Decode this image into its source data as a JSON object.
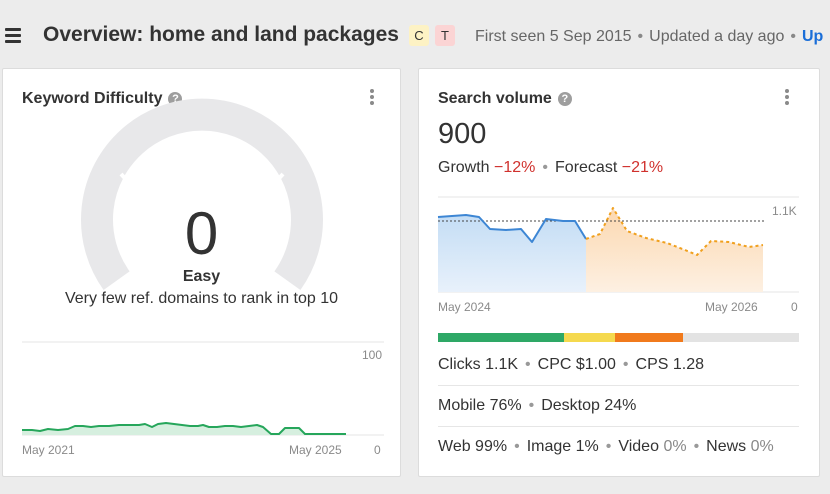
{
  "header": {
    "title": "Overview: home and land packages",
    "intent_badges": [
      "C",
      "T"
    ],
    "first_seen": "First seen 5 Sep 2015",
    "updated": "Updated a day ago",
    "update_link": "Up"
  },
  "keyword_difficulty": {
    "title": "Keyword Difficulty",
    "help_icon": "?",
    "value": "0",
    "label": "Easy",
    "description": "Very few ref. domains to rank in top 10",
    "gauge_fill_fraction": 0,
    "history_chart": {
      "y_max_label": "100",
      "y_min_label": "0",
      "x_start_label": "May 2021",
      "x_end_label": "May 2025",
      "line_color": "#26a65b"
    }
  },
  "search_volume": {
    "title": "Search volume",
    "help_icon": "?",
    "value": "900",
    "growth_label": "Growth",
    "growth_value": "−12%",
    "forecast_label": "Forecast",
    "forecast_value": "−21%",
    "chart": {
      "y_max_label": "1.1K",
      "y_min_label": "0",
      "x_start_label": "May 2024",
      "x_end_label": "May 2026",
      "history_color": "#3d86d4",
      "forecast_color": "#f0a01e"
    },
    "intent_bar": [
      {
        "color": "#2ea866",
        "fraction": 0.35
      },
      {
        "color": "#f5d94e",
        "fraction": 0.14
      },
      {
        "color": "#f17a1c",
        "fraction": 0.19
      },
      {
        "color": "#e3e3e3",
        "fraction": 0.32
      }
    ],
    "clicks": "Clicks 1.1K",
    "cpc": "CPC $1.00",
    "cps": "CPS 1.28",
    "mobile": "Mobile 76%",
    "desktop": "Desktop 24%",
    "web": "Web 99%",
    "image": "Image 1%",
    "video": "Video",
    "video_value": "0%",
    "news": "News",
    "news_value": "0%"
  }
}
